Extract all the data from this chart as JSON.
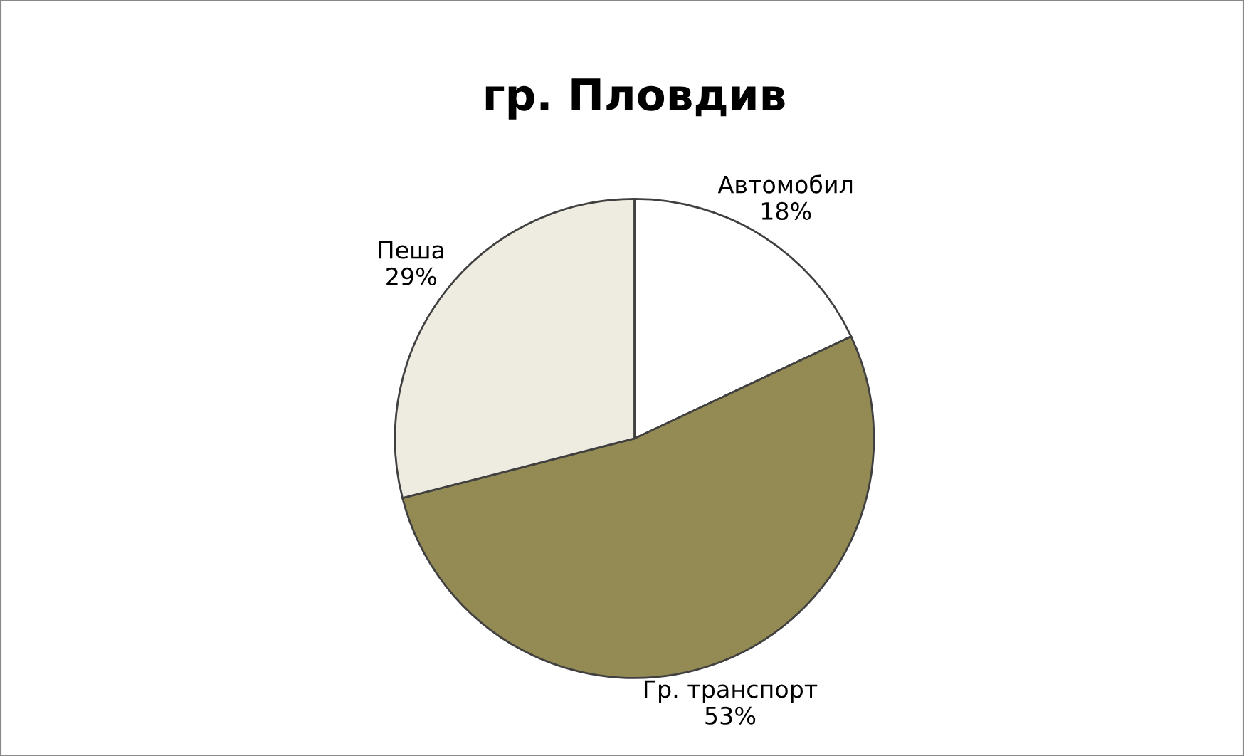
{
  "chart_data": {
    "type": "pie",
    "title": "гр. Пловдив",
    "categories": [
      "Автомобил",
      "Гр. транспорт",
      "Пеша"
    ],
    "values": [
      18,
      53,
      29
    ],
    "value_labels": [
      "18%",
      "53%",
      "29%"
    ],
    "colors": [
      "#ffffff",
      "#948a54",
      "#eeece1"
    ],
    "legend": false
  }
}
